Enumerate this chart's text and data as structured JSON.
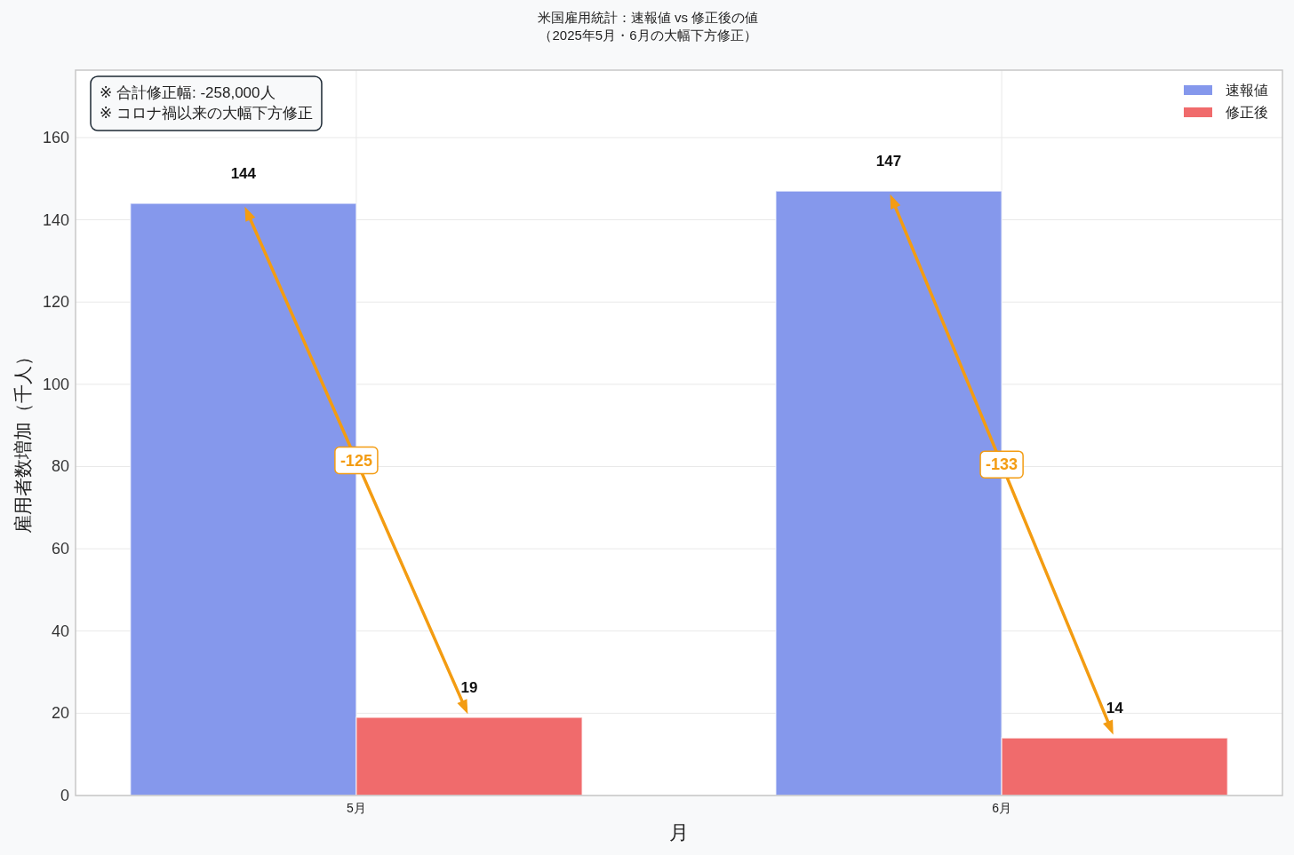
{
  "chart_data": {
    "type": "bar",
    "title": "米国雇用統計：速報値 vs 修正後の値",
    "subtitle": "（2025年5月・6月の大幅下方修正）",
    "xlabel": "月",
    "ylabel": "雇用者数増加（千人）",
    "categories": [
      "5月",
      "6月"
    ],
    "series": [
      {
        "name": "速報値",
        "color": "#8598ec",
        "values": [
          144,
          147
        ]
      },
      {
        "name": "修正後",
        "color": "#f06b6c",
        "values": [
          19,
          14
        ]
      }
    ],
    "ylim": [
      0,
      176.4
    ],
    "yticks": [
      0,
      20,
      40,
      60,
      80,
      100,
      120,
      140,
      160
    ],
    "grid": true,
    "legend": "top right",
    "data_labels": true,
    "annotations": [
      "※ 合計修正幅: -258,000人",
      "※ コロナ禍以来の大幅下方修正",
      {
        "text": "-125",
        "x": "5月",
        "y": 81.5
      },
      {
        "text": "-133",
        "x": "6月",
        "y": 80.5
      }
    ]
  }
}
